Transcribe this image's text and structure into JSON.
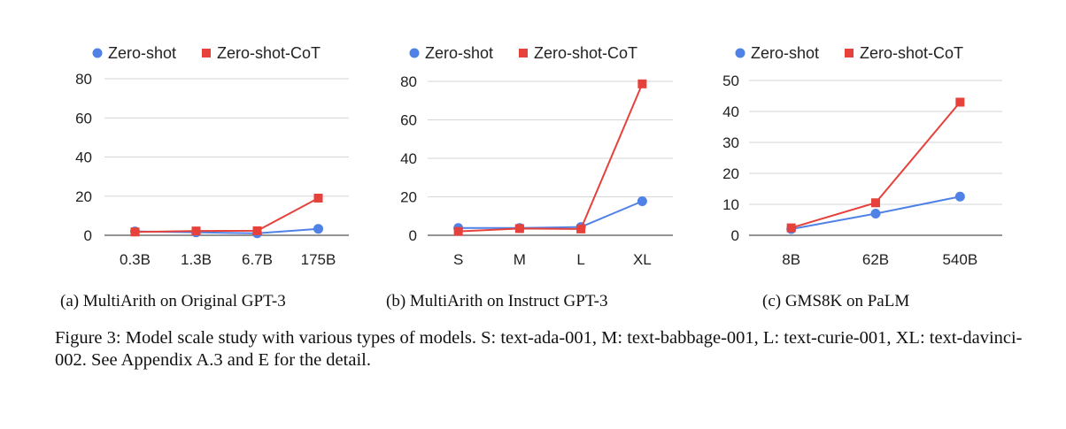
{
  "colors": {
    "zero_shot": "#4f81e6",
    "zero_shot_cot": "#e6413b",
    "grid": "#d6d6d6",
    "axis": "#555555"
  },
  "chart_data": [
    {
      "type": "line",
      "title": "",
      "caption": "(a) MultiArith on Original GPT-3",
      "categories": [
        "0.3B",
        "1.3B",
        "6.7B",
        "175B"
      ],
      "ylim": [
        0,
        80
      ],
      "yticks": [
        "80",
        "60",
        "40",
        "20",
        "0"
      ],
      "yticks_values": [
        80,
        60,
        40,
        20,
        0
      ],
      "legend": [
        "Zero-shot",
        "Zero-shot-CoT"
      ],
      "series": [
        {
          "name": "Zero-shot",
          "values": [
            2,
            1.5,
            1,
            3.3
          ]
        },
        {
          "name": "Zero-shot-CoT",
          "values": [
            1.7,
            2.2,
            2.3,
            19
          ]
        }
      ]
    },
    {
      "type": "line",
      "title": "",
      "caption": "(b) MultiArith on Instruct GPT-3",
      "categories": [
        "S",
        "M",
        "L",
        "XL"
      ],
      "ylim": [
        0,
        80
      ],
      "yticks": [
        "80",
        "60",
        "40",
        "20",
        "0"
      ],
      "yticks_values": [
        80,
        60,
        40,
        20,
        0
      ],
      "legend": [
        "Zero-shot",
        "Zero-shot-CoT"
      ],
      "series": [
        {
          "name": "Zero-shot",
          "values": [
            3.8,
            3.8,
            4.3,
            17.7
          ]
        },
        {
          "name": "Zero-shot-CoT",
          "values": [
            2,
            3.5,
            3.3,
            78.7
          ]
        }
      ]
    },
    {
      "type": "line",
      "title": "",
      "caption": "(c) GMS8K on PaLM",
      "categories": [
        "8B",
        "62B",
        "540B"
      ],
      "ylim": [
        0,
        50
      ],
      "yticks": [
        "50",
        "40",
        "30",
        "20",
        "10",
        "0"
      ],
      "yticks_values": [
        50,
        40,
        30,
        20,
        10,
        0
      ],
      "legend": [
        "Zero-shot",
        "Zero-shot-CoT"
      ],
      "series": [
        {
          "name": "Zero-shot",
          "values": [
            2,
            7,
            12.5
          ]
        },
        {
          "name": "Zero-shot-CoT",
          "values": [
            2.4,
            10.5,
            43
          ]
        }
      ]
    }
  ],
  "figure_caption": "Figure 3: Model scale study with various types of models. S: text-ada-001, M: text-babbage-001, L: text-curie-001, XL: text-davinci-002. See Appendix A.3 and E for the detail."
}
